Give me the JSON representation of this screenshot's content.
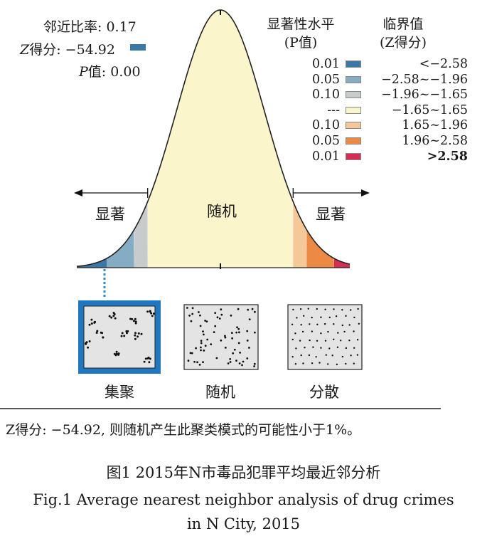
{
  "stats": {
    "nn_ratio": "邻近比率: 0.17",
    "z_label": "Z",
    "z_score": "得分: −54.92",
    "p_label": "P",
    "p_value": "值: 0.00"
  },
  "legend": {
    "header_sig_1": "显著性水平",
    "header_sig_2": "(P值)",
    "header_crit_1": "临界值",
    "header_crit_2": "(Z得分)",
    "rows": [
      {
        "p": "0.01",
        "range": "<−2.58",
        "color": "#3a78a6"
      },
      {
        "p": "0.05",
        "range": "−2.58~−1.96",
        "color": "#84acc3"
      },
      {
        "p": "0.10",
        "range": "−1.96~−1.65",
        "color": "#c8cbcc"
      },
      {
        "p": "---",
        "range": "−1.65~1.65",
        "color": "#fbf5cc"
      },
      {
        "p": "0.10",
        "range": "1.65~1.96",
        "color": "#f5c89a"
      },
      {
        "p": "0.05",
        "range": "1.96~2.58",
        "color": "#ec8a45"
      },
      {
        "p": "0.01",
        "range": ">2.58",
        "color": "#d62d52"
      }
    ]
  },
  "zones": {
    "left": "显著",
    "center": "随机",
    "right": "显著"
  },
  "patterns": {
    "clustered": "集聚",
    "random": "随机",
    "dispersed": "分散"
  },
  "note": "Z得分: −54.92, 则随机产生此聚类模式的可能性小于1%。",
  "caption": {
    "zh": "图1   2015年N市毒品犯罪平均最近邻分析",
    "en_1": "Fig.1   Average nearest neighbor analysis of drug crimes",
    "en_2": "in N City, 2015"
  }
}
